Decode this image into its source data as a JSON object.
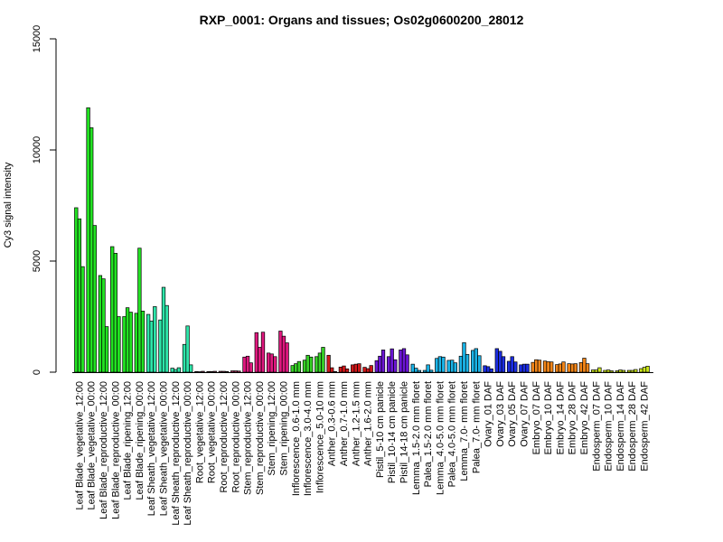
{
  "chart_data": {
    "type": "bar",
    "title": "RXP_0001: Organs and tissues; Os02g0600200_28012",
    "ylabel": "Cy3 signal intensity",
    "xlabel": "",
    "ylim": [
      0,
      15000
    ],
    "yticks": [
      0,
      5000,
      10000,
      15000
    ],
    "grid": false,
    "legend": "none",
    "groups": [
      {
        "label": "Leaf Blade_vegetative_12:00",
        "color": "#22e322",
        "values": [
          7400,
          6900,
          4750
        ]
      },
      {
        "label": "Leaf Blade_vegetative_00:00",
        "color": "#22e322",
        "values": [
          11900,
          11000,
          6600
        ]
      },
      {
        "label": "Leaf Blade_reproductive_12:00",
        "color": "#22e322",
        "values": [
          4350,
          4200,
          2050
        ]
      },
      {
        "label": "Leaf Blade_reproductive_00:00",
        "color": "#22e322",
        "values": [
          5650,
          5350,
          2500
        ]
      },
      {
        "label": "Leaf Blade_ripening_12:00",
        "color": "#22e322",
        "values": [
          2500,
          2900,
          2700
        ]
      },
      {
        "label": "Leaf Blade_ripening_00:00",
        "color": "#22e322",
        "values": [
          2650,
          5580,
          2750
        ]
      },
      {
        "label": "Leaf Sheath_vegetative_12:00",
        "color": "#2ee6aa",
        "values": [
          2600,
          2300,
          2950
        ]
      },
      {
        "label": "Leaf Sheath_vegetative_00:00",
        "color": "#2ee6aa",
        "values": [
          2350,
          3820,
          3000
        ]
      },
      {
        "label": "Leaf Sheath_reproductive_12:00",
        "color": "#2ee6aa",
        "values": [
          180,
          120,
          200
        ]
      },
      {
        "label": "Leaf Sheath_reproductive_00:00",
        "color": "#2ee6aa",
        "values": [
          1250,
          2080,
          330
        ]
      },
      {
        "label": "Root_vegetative_12:00",
        "color": "#c93c6e",
        "values": [
          30,
          20,
          40
        ]
      },
      {
        "label": "Root_vegetative_00:00",
        "color": "#c93c6e",
        "values": [
          30,
          30,
          40
        ]
      },
      {
        "label": "Root_reproductive_12:00",
        "color": "#c93c6e",
        "values": [
          40,
          40,
          30
        ]
      },
      {
        "label": "Root_reproductive_00:00",
        "color": "#c93c6e",
        "values": [
          60,
          60,
          50
        ]
      },
      {
        "label": "Stem_reproductive_12:00",
        "color": "#e0187f",
        "values": [
          680,
          720,
          420
        ]
      },
      {
        "label": "Stem_reproductive_00:00",
        "color": "#e0187f",
        "values": [
          1780,
          1120,
          1800
        ]
      },
      {
        "label": "Stem_ripening_12:00",
        "color": "#e0187f",
        "values": [
          860,
          820,
          700
        ]
      },
      {
        "label": "Stem_ripening_00:00",
        "color": "#e0187f",
        "values": [
          1850,
          1620,
          1320
        ]
      },
      {
        "label": "Inflorescence_0.6-1.0 mm",
        "color": "#36d126",
        "values": [
          300,
          380,
          480
        ]
      },
      {
        "label": "Inflorescence_3.0-4.0 mm",
        "color": "#36d126",
        "values": [
          540,
          760,
          680
        ]
      },
      {
        "label": "Inflorescence_5.0-10 mm",
        "color": "#36d126",
        "values": [
          700,
          860,
          1120
        ]
      },
      {
        "label": "Anther_0.3-0.6 mm",
        "color": "#d1181a",
        "values": [
          760,
          200,
          30
        ]
      },
      {
        "label": "Anther_0.7-1.0 mm",
        "color": "#d1181a",
        "values": [
          230,
          280,
          150
        ]
      },
      {
        "label": "Anther_1.2-1.5 mm",
        "color": "#d1181a",
        "values": [
          330,
          360,
          380
        ]
      },
      {
        "label": "Anther_1.6-2.0 mm",
        "color": "#d1181a",
        "values": [
          220,
          160,
          300
        ]
      },
      {
        "label": "Pistil_5-10 cm panicle",
        "color": "#6c16d6",
        "values": [
          520,
          720,
          1000
        ]
      },
      {
        "label": "Pistil_10-14 cm panicle",
        "color": "#6c16d6",
        "values": [
          700,
          1050,
          560
        ]
      },
      {
        "label": "Pistil_14-18 cm panicle",
        "color": "#6c16d6",
        "values": [
          1000,
          1060,
          780
        ]
      },
      {
        "label": "Lemma_1.5-2.0 mm floret",
        "color": "#1ab4e8",
        "values": [
          360,
          180,
          80
        ]
      },
      {
        "label": "Palea_1.5-2.0 mm floret",
        "color": "#1ab4e8",
        "values": [
          80,
          330,
          90
        ]
      },
      {
        "label": "Lemma_4.0-5.0 mm floret",
        "color": "#1ab4e8",
        "values": [
          620,
          700,
          680
        ]
      },
      {
        "label": "Palea_4.0-5.0 mm floret",
        "color": "#1ab4e8",
        "values": [
          530,
          540,
          420
        ]
      },
      {
        "label": "Lemma_7.0- mm floret",
        "color": "#1ab4e8",
        "values": [
          720,
          1330,
          800
        ]
      },
      {
        "label": "Palea_7.0- mm floret",
        "color": "#1ab4e8",
        "values": [
          980,
          1060,
          740
        ]
      },
      {
        "label": "Ovary_01 DAF",
        "color": "#1c2ee3",
        "values": [
          290,
          250,
          150
        ]
      },
      {
        "label": "Ovary_03 DAF",
        "color": "#1c2ee3",
        "values": [
          1060,
          940,
          700
        ]
      },
      {
        "label": "Ovary_05 DAF",
        "color": "#1c2ee3",
        "values": [
          490,
          700,
          460
        ]
      },
      {
        "label": "Ovary_07 DAF",
        "color": "#1c2ee3",
        "values": [
          330,
          360,
          360
        ]
      },
      {
        "label": "Embryo_07 DAF",
        "color": "#f28518",
        "values": [
          440,
          560,
          540
        ]
      },
      {
        "label": "Embryo_10 DAF",
        "color": "#f28518",
        "values": [
          500,
          470,
          460
        ]
      },
      {
        "label": "Embryo_14 DAF",
        "color": "#f28518",
        "values": [
          340,
          370,
          460
        ]
      },
      {
        "label": "Embryo_28 DAF",
        "color": "#f28518",
        "values": [
          380,
          370,
          380
        ]
      },
      {
        "label": "Embryo_42 DAF",
        "color": "#f28518",
        "values": [
          430,
          630,
          380
        ]
      },
      {
        "label": "Endosperm_07 DAF",
        "color": "#cde81a",
        "values": [
          100,
          100,
          200
        ]
      },
      {
        "label": "Endosperm_10 DAF",
        "color": "#cde81a",
        "values": [
          80,
          100,
          60
        ]
      },
      {
        "label": "Endosperm_14 DAF",
        "color": "#cde81a",
        "values": [
          60,
          100,
          80
        ]
      },
      {
        "label": "Endosperm_28 DAF",
        "color": "#cde81a",
        "values": [
          80,
          80,
          120
        ]
      },
      {
        "label": "Endosperm_42 DAF",
        "color": "#cde81a",
        "values": [
          160,
          220,
          270
        ]
      }
    ]
  }
}
